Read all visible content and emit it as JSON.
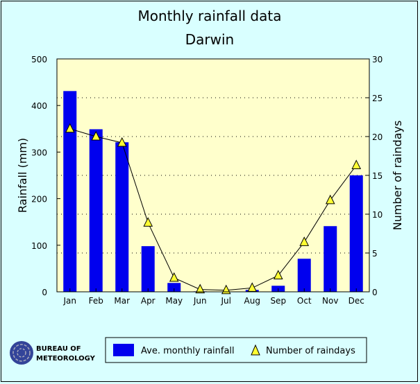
{
  "chart_data": {
    "type": "bar",
    "title": "Monthly rainfall data",
    "subtitle": "Darwin",
    "categories": [
      "Jan",
      "Feb",
      "Mar",
      "Apr",
      "May",
      "Jun",
      "Jul",
      "Aug",
      "Sep",
      "Oct",
      "Nov",
      "Dec"
    ],
    "series": [
      {
        "name": "Ave. monthly rainfall",
        "type": "bar",
        "axis": "left",
        "color": "#0000ee",
        "values": [
          431,
          349,
          321,
          98,
          19,
          1,
          0,
          4,
          13,
          71,
          141,
          250
        ]
      },
      {
        "name": "Number of raindays",
        "type": "line",
        "axis": "right",
        "marker": "triangle",
        "marker_color": "#ffff33",
        "values": [
          21.0,
          20.0,
          19.2,
          8.9,
          1.8,
          0.3,
          0.2,
          0.5,
          2.1,
          6.4,
          11.8,
          16.3
        ]
      }
    ],
    "ylabel": "Rainfall (mm)",
    "ylim": [
      0,
      500
    ],
    "yticks": [
      0,
      100,
      200,
      300,
      400,
      500
    ],
    "y2label": "Number of raindays",
    "y2lim": [
      0,
      30
    ],
    "y2ticks": [
      0,
      5,
      10,
      15,
      20,
      25,
      30
    ],
    "grid": "dotted horizontal at right-axis ticks",
    "legend": "bottom",
    "plot_background": "#ffffcc",
    "page_background": "#d9ffff"
  },
  "logo": {
    "line1": "Bureau of",
    "line2": "Meteorology"
  }
}
